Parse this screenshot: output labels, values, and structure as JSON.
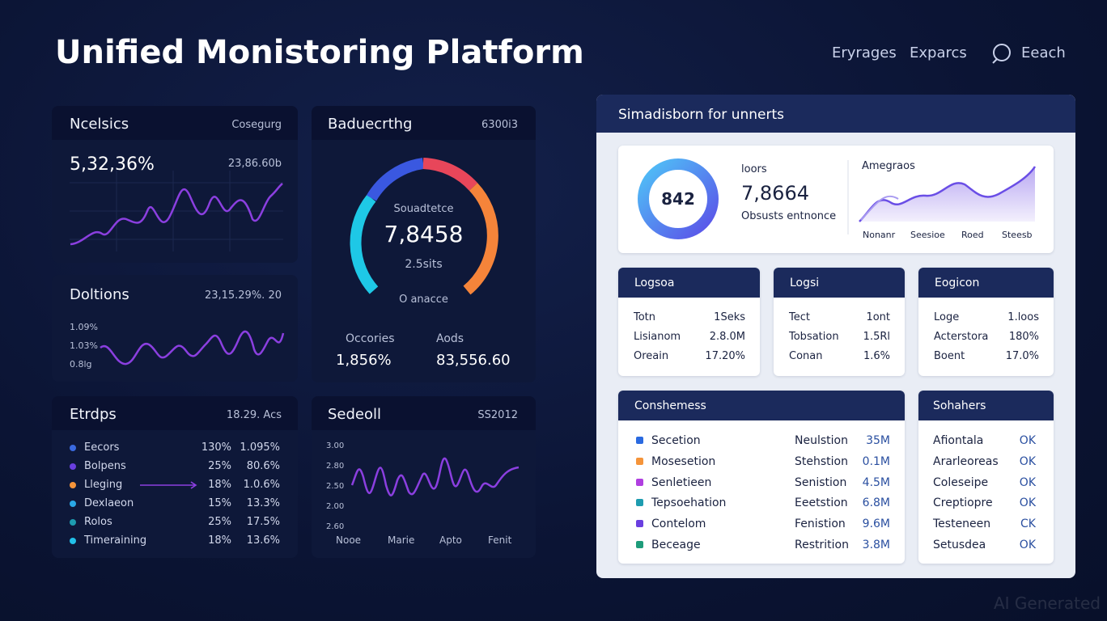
{
  "header": {
    "title": "Unified Monistoring Platform",
    "nav": [
      "Eryrages",
      "Exparcs",
      "Eeach"
    ]
  },
  "panels": {
    "metrics": {
      "title": "Ncelsics",
      "tag": "Cosegurg",
      "value": "5,32,36%",
      "sub": "23,86.60b"
    },
    "doltions": {
      "title": "Doltions",
      "tag": "23,15.29%. 20",
      "axis": [
        "1.09%",
        "1.03%",
        "0.8lg"
      ]
    },
    "etrdps": {
      "title": "Etrdps",
      "tag": "18.29. Acs",
      "rows": [
        [
          "Eecors",
          "130%",
          "1.095%"
        ],
        [
          "Bolpens",
          "25%",
          "80.6%"
        ],
        [
          "Lleging",
          "18%",
          "1.0.6%"
        ],
        [
          "Dexlaeon",
          "15%",
          "13.3%"
        ],
        [
          "Rolos",
          "25%",
          "17.5%"
        ],
        [
          "Timeraining",
          "18%",
          "13.6%"
        ]
      ]
    },
    "gauge": {
      "title": "Baduecrthg",
      "tag": "6300i3",
      "label": "Souadtetce",
      "value": "7,8458",
      "sub": "2.5sits",
      "foot": "O anacce",
      "stats": [
        {
          "label": "Occories",
          "value": "1,856%"
        },
        {
          "label": "Aods",
          "value": "83,556.60"
        }
      ]
    },
    "sedeoll": {
      "title": "Sedeoll",
      "tag": "SS2012",
      "axis": [
        "3.00",
        "2.80",
        "2.50",
        "2.00",
        "2.60"
      ],
      "x": [
        "Nooe",
        "Marie",
        "Apto",
        "Fenit"
      ]
    }
  },
  "summary": {
    "title": "Simadisborn for unnerts",
    "top": {
      "donut": "842",
      "label": "loors",
      "value": "7,8664",
      "sub": "Obsusts entnonce",
      "chart_title": "Amegraos",
      "x": [
        "Nonanr",
        "Seesioe",
        "Roed",
        "Steesb"
      ]
    },
    "cards": [
      {
        "title": "Logsoa",
        "rows": [
          [
            "Totn",
            "1Seks"
          ],
          [
            "Lisianom",
            "2.8.0M"
          ],
          [
            "Oreain",
            "17.20%"
          ]
        ]
      },
      {
        "title": "Logsi",
        "rows": [
          [
            "Tect",
            "1ont"
          ],
          [
            "Tobsation",
            "1.5Rl"
          ],
          [
            "Conan",
            "1.6%"
          ]
        ]
      },
      {
        "title": "Eogicon",
        "rows": [
          [
            "Loge",
            "1.loos"
          ],
          [
            "Acterstora",
            "180%"
          ],
          [
            "Boent",
            "17.0%"
          ]
        ]
      }
    ],
    "table": {
      "title": "Conshemess",
      "rows": [
        [
          "Secetion",
          "Neulstion",
          "35M"
        ],
        [
          "Mosesetion",
          "Stehstion",
          "0.1M"
        ],
        [
          "Senletieen",
          "Senistion",
          "4.5M"
        ],
        [
          "Tepsoehation",
          "Eeetstion",
          "6.8M"
        ],
        [
          "Contelom",
          "Fenistion",
          "9.6M"
        ],
        [
          "Beceage",
          "Restrition",
          "3.8M"
        ]
      ]
    },
    "status": {
      "title": "Sohahers",
      "rows": [
        [
          "Afiontala",
          "OK"
        ],
        [
          "Ararleoreas",
          "OK"
        ],
        [
          "Coleseipe",
          "OK"
        ],
        [
          "Creptiopre",
          "OK"
        ],
        [
          "Testeneen",
          "CK"
        ],
        [
          "Setusdea",
          "OK"
        ]
      ]
    }
  },
  "watermark": "AI Generated"
}
